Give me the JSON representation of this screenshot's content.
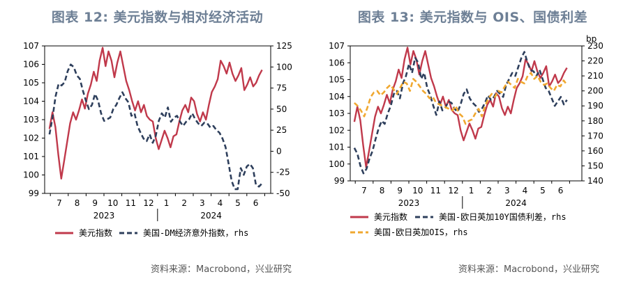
{
  "left": {
    "title": "图表 12: 美元指数与相对经济活动",
    "source": "资料来源：Macrobond，兴业研究",
    "chart_data": {
      "type": "line",
      "x_labels": [
        "7",
        "8",
        "9",
        "10",
        "11",
        "12",
        "1",
        "2",
        "3",
        "4",
        "5",
        "6"
      ],
      "year_labels": [
        "2023",
        "2024"
      ],
      "left_axis": {
        "ticks": [
          "107",
          "106",
          "105",
          "104",
          "103",
          "102",
          "101",
          "100",
          "99"
        ],
        "min": 99,
        "max": 107
      },
      "right_axis": {
        "ticks": [
          "125",
          "100",
          "75",
          "50",
          "25",
          "0",
          "-25",
          "-50"
        ],
        "min": -50,
        "max": 125
      },
      "series": [
        {
          "name": "美元指数",
          "color": "#c0394b",
          "dash": false,
          "axis": "left",
          "values": [
            102.5,
            103.4,
            102.6,
            101.1,
            99.8,
            100.8,
            101.8,
            102.8,
            103.4,
            103.0,
            103.5,
            104.1,
            103.6,
            104.4,
            104.9,
            105.6,
            105.1,
            106.2,
            106.9,
            105.9,
            106.7,
            106.2,
            105.3,
            106.1,
            106.7,
            105.9,
            105.1,
            104.6,
            104.0,
            103.5,
            104.0,
            103.4,
            103.8,
            103.2,
            103.0,
            102.9,
            102.0,
            101.4,
            101.9,
            102.4,
            102.0,
            101.5,
            102.1,
            102.2,
            102.9,
            103.5,
            103.8,
            103.4,
            104.2,
            104.0,
            103.3,
            102.9,
            103.4,
            103.0,
            103.8,
            104.5,
            104.8,
            105.2,
            106.2,
            105.9,
            105.5,
            106.1,
            105.5,
            105.1,
            105.4,
            105.8,
            104.6,
            104.9,
            105.3,
            104.8,
            105.0,
            105.4,
            105.7
          ]
        },
        {
          "name": "美国-DM经济意外指数，rhs",
          "color": "#2e3f5c",
          "dash": true,
          "axis": "right",
          "values": [
            20,
            40,
            65,
            80,
            78,
            82,
            95,
            103,
            100,
            90,
            86,
            72,
            60,
            50,
            55,
            68,
            60,
            45,
            36,
            38,
            40,
            50,
            55,
            63,
            70,
            63,
            58,
            42,
            45,
            30,
            22,
            15,
            12,
            20,
            10,
            18,
            36,
            45,
            40,
            52,
            35,
            40,
            42,
            35,
            30,
            35,
            38,
            45,
            38,
            33,
            30,
            34,
            33,
            28,
            30,
            25,
            22,
            15,
            5,
            -15,
            -35,
            -45,
            -45,
            -20,
            -28,
            -18,
            -15,
            -20,
            -40,
            -42,
            -38
          ]
        }
      ]
    },
    "legend": [
      {
        "label": "美元指数",
        "color": "#c0394b",
        "dash": false
      },
      {
        "label": "美国-DM经济意外指数，rhs",
        "color": "#2e3f5c",
        "dash": true
      }
    ]
  },
  "right": {
    "title": "图表 13: 美元指数与 OIS、国债利差",
    "source": "资料来源：Macrobond，兴业研究",
    "chart_data": {
      "type": "line",
      "x_labels": [
        "7",
        "8",
        "9",
        "10",
        "11",
        "12",
        "1",
        "2",
        "3",
        "4",
        "5",
        "6"
      ],
      "year_labels": [
        "2023",
        "2024"
      ],
      "left_axis": {
        "ticks": [
          "107",
          "106",
          "105",
          "104",
          "103",
          "102",
          "101",
          "100",
          "99"
        ],
        "min": 99,
        "max": 107
      },
      "right_axis": {
        "ticks": [
          "230",
          "220",
          "210",
          "200",
          "190",
          "180",
          "170",
          "160",
          "150",
          "140"
        ],
        "min": 140,
        "max": 230,
        "unit": "bp"
      },
      "series": [
        {
          "name": "美元指数",
          "color": "#c0394b",
          "dash": false,
          "axis": "left",
          "values": [
            102.5,
            103.4,
            102.6,
            101.1,
            99.8,
            100.8,
            101.8,
            102.8,
            103.4,
            103.0,
            103.5,
            104.1,
            103.6,
            104.4,
            104.9,
            105.6,
            105.1,
            106.2,
            106.9,
            105.9,
            106.7,
            106.2,
            105.3,
            106.1,
            106.7,
            105.9,
            105.1,
            104.6,
            104.0,
            103.5,
            104.0,
            103.4,
            103.8,
            103.2,
            103.0,
            102.9,
            102.0,
            101.4,
            101.9,
            102.4,
            102.0,
            101.5,
            102.1,
            102.2,
            102.9,
            103.5,
            103.8,
            103.4,
            104.2,
            104.0,
            103.3,
            102.9,
            103.4,
            103.0,
            103.8,
            104.5,
            104.8,
            105.2,
            106.2,
            105.9,
            105.5,
            106.1,
            105.5,
            105.1,
            105.4,
            105.8,
            104.6,
            104.9,
            105.3,
            104.8,
            105.0,
            105.4,
            105.7
          ]
        },
        {
          "name": "美国-欧日英加10Y国债利差，rhs",
          "color": "#2e3f5c",
          "dash": true,
          "axis": "right",
          "values": [
            162,
            158,
            150,
            145,
            148,
            155,
            160,
            168,
            175,
            180,
            178,
            185,
            190,
            198,
            200,
            195,
            205,
            210,
            218,
            212,
            222,
            219,
            208,
            212,
            202,
            197,
            190,
            184,
            193,
            187,
            189,
            193,
            192,
            188,
            186,
            191,
            198,
            201,
            195,
            192,
            190,
            186,
            188,
            192,
            197,
            194,
            196,
            200,
            198,
            196,
            204,
            208,
            212,
            210,
            216,
            222,
            226,
            219,
            214,
            213,
            210,
            214,
            208,
            202,
            200,
            195,
            190,
            193,
            196,
            191,
            194
          ]
        },
        {
          "name": "美国-欧日英加OIS，rhs",
          "color": "#f0a830",
          "dash": true,
          "axis": "right",
          "values": [
            192,
            190,
            187,
            183,
            189,
            196,
            199,
            200,
            197,
            199,
            202,
            204,
            201,
            198,
            202,
            206,
            205,
            200,
            208,
            206,
            203,
            200,
            198,
            195,
            196,
            192,
            191,
            190,
            189,
            188,
            187,
            190,
            185,
            183,
            178,
            180,
            181,
            185,
            188,
            183,
            190,
            195,
            198,
            196,
            200,
            199,
            203,
            206,
            204,
            202,
            208,
            206,
            205,
            210,
            212,
            208,
            210,
            206,
            204,
            205,
            202,
            200,
            204,
            203,
            207,
            204
          ]
        }
      ]
    },
    "legend": [
      {
        "label": "美元指数",
        "color": "#c0394b",
        "dash": false
      },
      {
        "label": "美国-欧日英加10Y国债利差，rhs",
        "color": "#2e3f5c",
        "dash": true
      },
      {
        "label": "美国-欧日英加OIS，rhs",
        "color": "#f0a830",
        "dash": true
      }
    ]
  }
}
